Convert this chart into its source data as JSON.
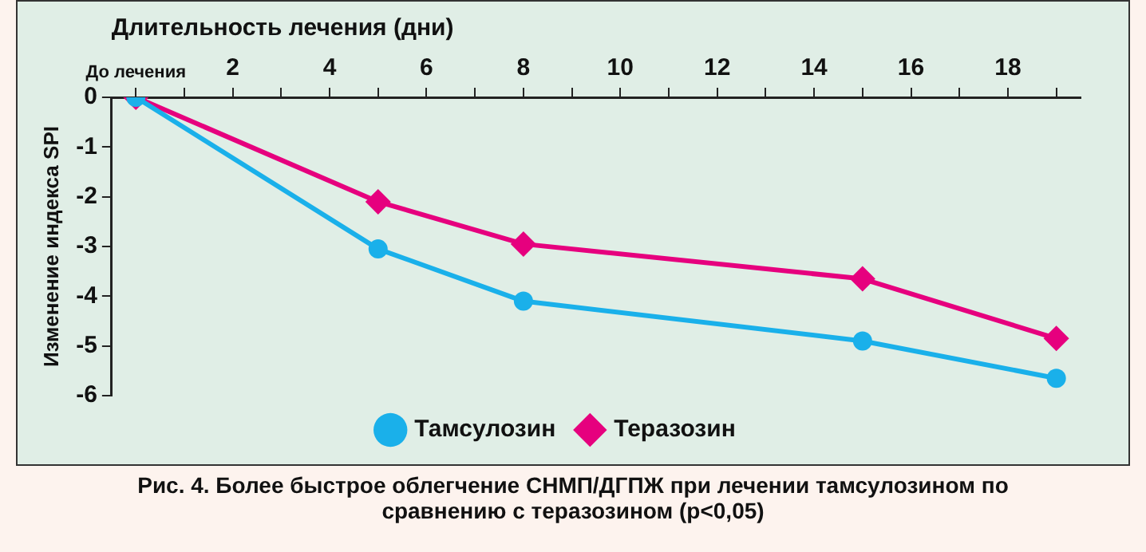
{
  "chart_data": {
    "type": "line",
    "xlabel": "Длительность лечения (дни)",
    "ylabel": "Изменение индекса SPI",
    "annotations": [
      "Рис. 4. Более быстрое облегчение СНМП/ДГПЖ при лечении тамсулозином по сравнению с теразозином (p<0,05)"
    ],
    "x": [
      0,
      5,
      8,
      15,
      19
    ],
    "series": [
      {
        "name": "Тамсулозин",
        "color": "#1ab0ea",
        "marker": "circle",
        "values": [
          0,
          -3.05,
          -4.1,
          -4.9,
          -5.65
        ]
      },
      {
        "name": "Теразозин",
        "color": "#e6007e",
        "marker": "diamond",
        "values": [
          0,
          -2.1,
          -2.95,
          -3.65,
          -4.85
        ]
      }
    ],
    "xlim": [
      -0.5,
      19.5
    ],
    "xticks": [
      {
        "value": 0,
        "label": "До лечения"
      },
      {
        "value": 1,
        "label": null
      },
      2,
      {
        "value": 3,
        "label": null
      },
      4,
      {
        "value": 5,
        "label": null
      },
      6,
      {
        "value": 7,
        "label": null
      },
      8,
      {
        "value": 9,
        "label": null
      },
      10,
      {
        "value": 11,
        "label": null
      },
      12,
      {
        "value": 13,
        "label": null
      },
      14,
      {
        "value": 15,
        "label": null
      },
      16,
      {
        "value": 17,
        "label": null
      },
      18,
      {
        "value": 19,
        "label": null
      }
    ],
    "ylim": [
      -6,
      0
    ],
    "yticks": [
      -6,
      -5,
      -4,
      -3,
      -2,
      -1,
      0
    ],
    "grid": false,
    "legend": "bottom",
    "line_style": "solid"
  }
}
